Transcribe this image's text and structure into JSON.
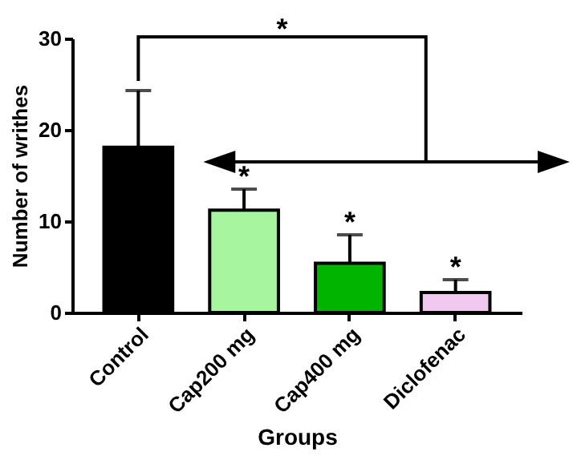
{
  "chart_data": {
    "type": "bar",
    "xlabel": "Groups",
    "ylabel": "Number of writhes",
    "categories": [
      "Control",
      "Cap200 mg",
      "Cap400 mg",
      "Diclofenac"
    ],
    "values": [
      18.1,
      11.2,
      5.4,
      2.2
    ],
    "colors": [
      "#000000",
      "#a8f5a0",
      "#00b400",
      "#f0c8f0"
    ],
    "errors": [
      [
        18.1,
        24.3
      ],
      [
        11.2,
        13.5
      ],
      [
        5.4,
        8.5
      ],
      [
        2.2,
        3.6
      ]
    ],
    "ylim": [
      0,
      30
    ],
    "yticks": [
      0,
      10,
      20,
      30
    ],
    "grid": false,
    "legend": false,
    "annotations": [
      "*",
      {
        "text": "*",
        "x": "Cap200 mg",
        "y": 13.5
      },
      {
        "text": "*",
        "x": "Cap400 mg",
        "y": 8.5
      },
      {
        "text": "*",
        "x": "Diclofenac",
        "y": 3.6
      }
    ]
  }
}
